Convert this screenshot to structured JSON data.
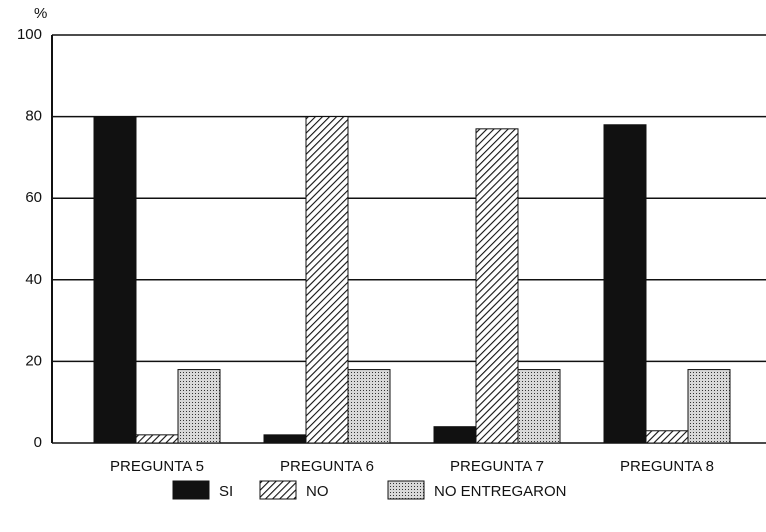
{
  "chart_data": {
    "type": "bar",
    "y_label": "%",
    "categories": [
      "PREGUNTA 5",
      "PREGUNTA 6",
      "PREGUNTA 7",
      "PREGUNTA 8"
    ],
    "series": [
      {
        "name": "SI",
        "color": "#111111",
        "fill": "solid",
        "values": [
          80,
          2,
          4,
          78
        ]
      },
      {
        "name": "NO",
        "color": "#111111",
        "fill": "hatch",
        "values": [
          2,
          80,
          77,
          3
        ]
      },
      {
        "name": "NO ENTREGARON",
        "color": "#111111",
        "fill": "dots",
        "values": [
          18,
          18,
          18,
          18
        ]
      }
    ],
    "ylim": [
      0,
      100
    ],
    "yticks": [
      0,
      20,
      40,
      60,
      80,
      100
    ],
    "grid": true
  }
}
